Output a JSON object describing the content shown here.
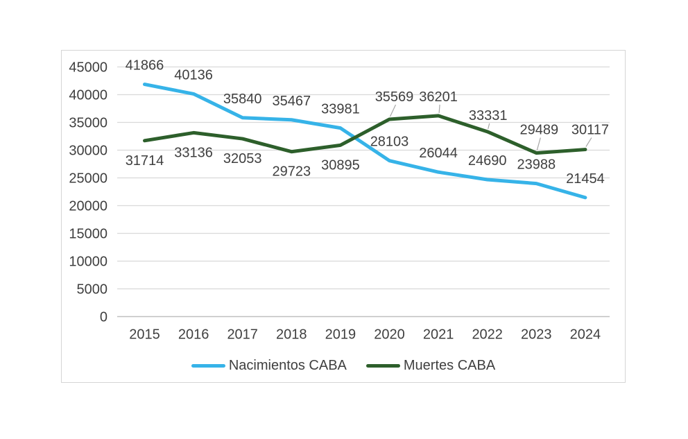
{
  "chart_data": {
    "type": "line",
    "title": "",
    "categories": [
      "2015",
      "2016",
      "2017",
      "2018",
      "2019",
      "2020",
      "2021",
      "2022",
      "2023",
      "2024"
    ],
    "series": [
      {
        "name": "Nacimientos CABA",
        "color": "#36B3E8",
        "values": [
          41866,
          40136,
          35840,
          35467,
          33981,
          28103,
          26044,
          24690,
          23988,
          21454
        ]
      },
      {
        "name": "Muertes CABA",
        "color": "#2D5F2B",
        "values": [
          31714,
          33136,
          32053,
          29723,
          30895,
          35569,
          36201,
          33331,
          29489,
          30117
        ]
      }
    ],
    "xlabel": "",
    "ylabel": "",
    "ylim": [
      0,
      45000
    ],
    "yticks": [
      0,
      5000,
      10000,
      15000,
      20000,
      25000,
      30000,
      35000,
      40000,
      45000
    ],
    "grid": true,
    "data_labels": true,
    "legend_position": "bottom"
  },
  "colors": {
    "background": "#ffffff",
    "frame_border": "#d5d5d5",
    "gridline": "#d9d9d9",
    "axis_line": "#bfbfbf",
    "text": "#3f3f3f",
    "leader_line": "#a6a6a6"
  }
}
